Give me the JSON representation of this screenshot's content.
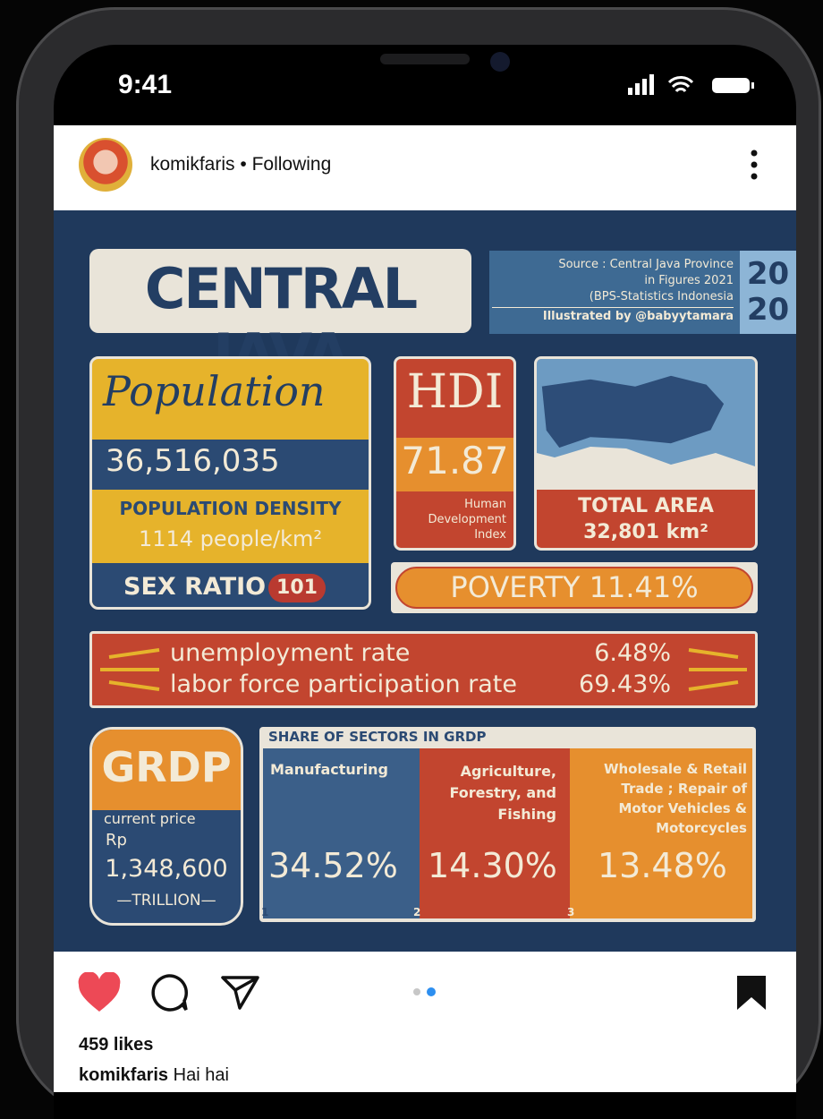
{
  "status_bar": {
    "time": "9:41"
  },
  "post_header": {
    "username": "komikfaris",
    "separator": "•",
    "follow_state": "Following"
  },
  "infographic": {
    "title": "CENTRAL JAVA",
    "source": [
      "Source : Central Java Province",
      "in Figures 2021",
      "(BPS-Statistics Indonesia"
    ],
    "credit": "Illustrated by @babyytamara",
    "year": [
      "20",
      "20"
    ],
    "population": {
      "label": "Population",
      "value": "36,516,035"
    },
    "density": {
      "label": "POPULATION DENSITY",
      "value": "1114 people/km²"
    },
    "sex_ratio": {
      "label": "SEX RATIO",
      "value": "101"
    },
    "hdi": {
      "label": "HDI",
      "value": "71.87",
      "caption": [
        "Human",
        "Development",
        "Index"
      ]
    },
    "area": {
      "label": "TOTAL AREA",
      "value": "32,801 km²"
    },
    "poverty": {
      "label": "POVERTY",
      "value": "11.41%"
    },
    "labor": [
      {
        "label": "unemployment rate",
        "value": "6.48%"
      },
      {
        "label": "labor force participation rate",
        "value": "69.43%"
      }
    ],
    "grdp": {
      "label": "GRDP",
      "note": "current price",
      "currency": "Rp",
      "value": "1,348,600",
      "unit": "—TRILLION—"
    },
    "sectors": {
      "title": "SHARE OF SECTORS IN GRDP",
      "items": [
        {
          "rank": "1",
          "label": [
            "Manufacturing"
          ],
          "value": "34.52%"
        },
        {
          "rank": "2",
          "label": [
            "Agriculture,",
            "Forestry, and",
            "Fishing"
          ],
          "value": "14.30%"
        },
        {
          "rank": "3",
          "label": [
            "Wholesale & Retail",
            "Trade ; Repair of",
            "Motor Vehicles &",
            "Motorcycles"
          ],
          "value": "13.48%"
        }
      ]
    }
  },
  "post_footer": {
    "likes": "459 likes",
    "caption_user": "komikfaris",
    "caption_text": "Hai hai"
  }
}
